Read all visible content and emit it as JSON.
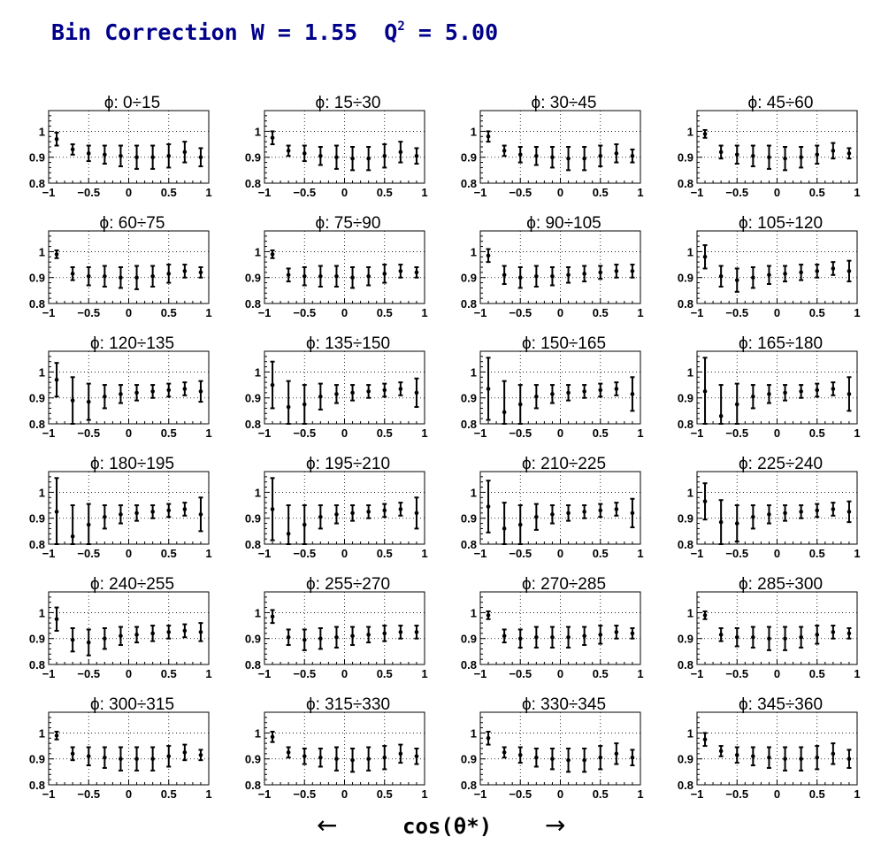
{
  "title": {
    "prefix": "Bin Correction W = 1.55  Q",
    "superscript": "2",
    "suffix": " = 5.00"
  },
  "axis": {
    "x_title": "cos(θ*)",
    "left_arrow": "←",
    "right_arrow": "→"
  },
  "chart_data": {
    "type": "scatter",
    "x": [
      -0.9,
      -0.7,
      -0.5,
      -0.3,
      -0.1,
      0.1,
      0.3,
      0.5,
      0.7,
      0.9
    ],
    "xlim": [
      -1,
      1
    ],
    "ylim": [
      0.8,
      1.08
    ],
    "x_ticks": [
      -1,
      -0.5,
      0,
      0.5,
      1
    ],
    "x_tick_labels": [
      "−1",
      "−0.5",
      "0",
      "0.5",
      "1"
    ],
    "y_ticks": [
      0.8,
      0.9,
      1
    ],
    "y_tick_labels": [
      "0.8",
      "0.9",
      "1"
    ],
    "grid": true,
    "panels": [
      {
        "title": "ϕ:  0÷15",
        "y": [
          0.97,
          0.93,
          0.915,
          0.91,
          0.905,
          0.9,
          0.9,
          0.905,
          0.92,
          0.9
        ],
        "err": [
          0.025,
          0.02,
          0.03,
          0.035,
          0.04,
          0.045,
          0.045,
          0.045,
          0.04,
          0.035
        ]
      },
      {
        "title": "ϕ:  15÷30",
        "y": [
          0.975,
          0.925,
          0.915,
          0.905,
          0.9,
          0.895,
          0.895,
          0.905,
          0.92,
          0.905
        ],
        "err": [
          0.025,
          0.02,
          0.03,
          0.035,
          0.045,
          0.045,
          0.045,
          0.045,
          0.04,
          0.03
        ]
      },
      {
        "title": "ϕ:  30÷45",
        "y": [
          0.98,
          0.925,
          0.91,
          0.905,
          0.9,
          0.895,
          0.895,
          0.905,
          0.915,
          0.905
        ],
        "err": [
          0.02,
          0.02,
          0.03,
          0.035,
          0.04,
          0.045,
          0.045,
          0.04,
          0.035,
          0.025
        ]
      },
      {
        "title": "ϕ:  45÷60",
        "y": [
          0.99,
          0.92,
          0.91,
          0.905,
          0.9,
          0.895,
          0.9,
          0.91,
          0.925,
          0.915
        ],
        "err": [
          0.015,
          0.025,
          0.035,
          0.04,
          0.045,
          0.045,
          0.04,
          0.035,
          0.03,
          0.02
        ]
      },
      {
        "title": "ϕ:  60÷75",
        "y": [
          0.99,
          0.915,
          0.905,
          0.905,
          0.9,
          0.9,
          0.905,
          0.915,
          0.925,
          0.92
        ],
        "err": [
          0.015,
          0.025,
          0.035,
          0.04,
          0.04,
          0.045,
          0.04,
          0.035,
          0.025,
          0.02
        ]
      },
      {
        "title": "ϕ:  75÷90",
        "y": [
          0.99,
          0.91,
          0.905,
          0.905,
          0.905,
          0.9,
          0.905,
          0.915,
          0.925,
          0.92
        ],
        "err": [
          0.015,
          0.025,
          0.035,
          0.04,
          0.04,
          0.04,
          0.035,
          0.035,
          0.025,
          0.02
        ]
      },
      {
        "title": "ϕ:  90÷105",
        "y": [
          0.985,
          0.91,
          0.9,
          0.905,
          0.905,
          0.91,
          0.915,
          0.92,
          0.925,
          0.925
        ],
        "err": [
          0.025,
          0.035,
          0.04,
          0.04,
          0.035,
          0.03,
          0.03,
          0.025,
          0.025,
          0.025
        ]
      },
      {
        "title": "ϕ: 105÷120",
        "y": [
          0.98,
          0.905,
          0.89,
          0.9,
          0.91,
          0.915,
          0.92,
          0.925,
          0.935,
          0.925
        ],
        "err": [
          0.045,
          0.04,
          0.045,
          0.04,
          0.035,
          0.03,
          0.03,
          0.025,
          0.025,
          0.04
        ]
      },
      {
        "title": "ϕ: 120÷135",
        "y": [
          0.97,
          0.89,
          0.885,
          0.905,
          0.915,
          0.92,
          0.925,
          0.93,
          0.935,
          0.925
        ],
        "err": [
          0.065,
          0.09,
          0.07,
          0.045,
          0.035,
          0.03,
          0.025,
          0.025,
          0.025,
          0.04
        ]
      },
      {
        "title": "ϕ: 135÷150",
        "y": [
          0.95,
          0.865,
          0.875,
          0.905,
          0.915,
          0.92,
          0.925,
          0.93,
          0.935,
          0.92
        ],
        "err": [
          0.09,
          0.1,
          0.075,
          0.05,
          0.035,
          0.03,
          0.025,
          0.025,
          0.025,
          0.055
        ]
      },
      {
        "title": "ϕ: 150÷165",
        "y": [
          0.935,
          0.845,
          0.875,
          0.905,
          0.915,
          0.92,
          0.925,
          0.93,
          0.935,
          0.915
        ],
        "err": [
          0.12,
          0.12,
          0.075,
          0.045,
          0.035,
          0.03,
          0.025,
          0.025,
          0.025,
          0.065
        ]
      },
      {
        "title": "ϕ: 165÷180",
        "y": [
          0.925,
          0.83,
          0.875,
          0.905,
          0.915,
          0.92,
          0.925,
          0.93,
          0.935,
          0.915
        ],
        "err": [
          0.13,
          0.12,
          0.08,
          0.045,
          0.035,
          0.03,
          0.025,
          0.025,
          0.025,
          0.065
        ]
      },
      {
        "title": "ϕ: 180÷195",
        "y": [
          0.925,
          0.83,
          0.875,
          0.905,
          0.915,
          0.92,
          0.925,
          0.93,
          0.935,
          0.915
        ],
        "err": [
          0.13,
          0.12,
          0.08,
          0.045,
          0.035,
          0.03,
          0.025,
          0.025,
          0.025,
          0.065
        ]
      },
      {
        "title": "ϕ: 195÷210",
        "y": [
          0.935,
          0.84,
          0.875,
          0.905,
          0.915,
          0.92,
          0.925,
          0.93,
          0.935,
          0.92
        ],
        "err": [
          0.12,
          0.11,
          0.075,
          0.045,
          0.035,
          0.03,
          0.025,
          0.025,
          0.025,
          0.06
        ]
      },
      {
        "title": "ϕ: 210÷225",
        "y": [
          0.945,
          0.86,
          0.875,
          0.905,
          0.915,
          0.92,
          0.925,
          0.93,
          0.935,
          0.92
        ],
        "err": [
          0.1,
          0.1,
          0.075,
          0.05,
          0.035,
          0.03,
          0.025,
          0.025,
          0.025,
          0.055
        ]
      },
      {
        "title": "ϕ: 225÷240",
        "y": [
          0.965,
          0.885,
          0.88,
          0.905,
          0.915,
          0.92,
          0.925,
          0.93,
          0.935,
          0.925
        ],
        "err": [
          0.07,
          0.085,
          0.07,
          0.045,
          0.035,
          0.03,
          0.025,
          0.025,
          0.025,
          0.04
        ]
      },
      {
        "title": "ϕ: 240÷255",
        "y": [
          0.975,
          0.895,
          0.885,
          0.9,
          0.91,
          0.915,
          0.92,
          0.925,
          0.93,
          0.925
        ],
        "err": [
          0.045,
          0.045,
          0.05,
          0.04,
          0.035,
          0.03,
          0.03,
          0.025,
          0.025,
          0.035
        ]
      },
      {
        "title": "ϕ: 255÷270",
        "y": [
          0.985,
          0.905,
          0.895,
          0.9,
          0.905,
          0.91,
          0.915,
          0.92,
          0.925,
          0.925
        ],
        "err": [
          0.025,
          0.03,
          0.04,
          0.04,
          0.04,
          0.035,
          0.03,
          0.03,
          0.025,
          0.025
        ]
      },
      {
        "title": "ϕ: 270÷285",
        "y": [
          0.99,
          0.91,
          0.9,
          0.905,
          0.905,
          0.905,
          0.91,
          0.915,
          0.925,
          0.92
        ],
        "err": [
          0.015,
          0.025,
          0.035,
          0.04,
          0.04,
          0.04,
          0.035,
          0.035,
          0.025,
          0.02
        ]
      },
      {
        "title": "ϕ: 285÷300",
        "y": [
          0.99,
          0.915,
          0.905,
          0.905,
          0.9,
          0.9,
          0.905,
          0.915,
          0.925,
          0.92
        ],
        "err": [
          0.015,
          0.025,
          0.035,
          0.04,
          0.045,
          0.045,
          0.04,
          0.035,
          0.025,
          0.02
        ]
      },
      {
        "title": "ϕ: 300÷315",
        "y": [
          0.99,
          0.92,
          0.91,
          0.905,
          0.9,
          0.9,
          0.9,
          0.91,
          0.925,
          0.915
        ],
        "err": [
          0.015,
          0.025,
          0.035,
          0.04,
          0.045,
          0.045,
          0.045,
          0.04,
          0.03,
          0.02
        ]
      },
      {
        "title": "ϕ: 315÷330",
        "y": [
          0.985,
          0.925,
          0.91,
          0.905,
          0.9,
          0.895,
          0.9,
          0.905,
          0.92,
          0.91
        ],
        "err": [
          0.02,
          0.02,
          0.03,
          0.035,
          0.045,
          0.045,
          0.045,
          0.045,
          0.035,
          0.03
        ]
      },
      {
        "title": "ϕ: 330÷345",
        "y": [
          0.98,
          0.925,
          0.915,
          0.905,
          0.9,
          0.895,
          0.895,
          0.905,
          0.92,
          0.905
        ],
        "err": [
          0.025,
          0.02,
          0.03,
          0.035,
          0.04,
          0.045,
          0.045,
          0.045,
          0.04,
          0.03
        ]
      },
      {
        "title": "ϕ: 345÷360",
        "y": [
          0.975,
          0.93,
          0.915,
          0.91,
          0.905,
          0.9,
          0.9,
          0.905,
          0.92,
          0.9
        ],
        "err": [
          0.025,
          0.02,
          0.03,
          0.035,
          0.04,
          0.045,
          0.045,
          0.045,
          0.04,
          0.035
        ]
      }
    ]
  }
}
